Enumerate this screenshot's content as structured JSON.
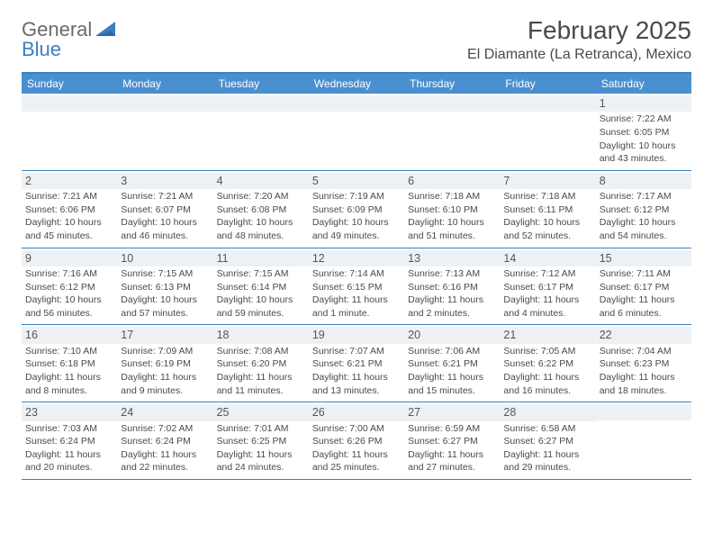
{
  "logo": {
    "line1": "General",
    "line2": "Blue"
  },
  "title": "February 2025",
  "location": "El Diamante (La Retranca), Mexico",
  "colors": {
    "headerBar": "#4a90d0",
    "accentLine": "#3a7fc0",
    "dayBand": "#eef1f3",
    "text": "#4a4a4a",
    "logoBlue": "#3a7fc0",
    "background": "#ffffff"
  },
  "typography": {
    "titleFontSize": 28,
    "locationFontSize": 16,
    "dowFontSize": 12,
    "dayNumFontSize": 12.5,
    "bodyFontSize": 10.5
  },
  "daysOfWeek": [
    "Sunday",
    "Monday",
    "Tuesday",
    "Wednesday",
    "Thursday",
    "Friday",
    "Saturday"
  ],
  "weeks": [
    [
      null,
      null,
      null,
      null,
      null,
      null,
      {
        "n": "1",
        "sunrise": "Sunrise: 7:22 AM",
        "sunset": "Sunset: 6:05 PM",
        "dl1": "Daylight: 10 hours",
        "dl2": "and 43 minutes."
      }
    ],
    [
      {
        "n": "2",
        "sunrise": "Sunrise: 7:21 AM",
        "sunset": "Sunset: 6:06 PM",
        "dl1": "Daylight: 10 hours",
        "dl2": "and 45 minutes."
      },
      {
        "n": "3",
        "sunrise": "Sunrise: 7:21 AM",
        "sunset": "Sunset: 6:07 PM",
        "dl1": "Daylight: 10 hours",
        "dl2": "and 46 minutes."
      },
      {
        "n": "4",
        "sunrise": "Sunrise: 7:20 AM",
        "sunset": "Sunset: 6:08 PM",
        "dl1": "Daylight: 10 hours",
        "dl2": "and 48 minutes."
      },
      {
        "n": "5",
        "sunrise": "Sunrise: 7:19 AM",
        "sunset": "Sunset: 6:09 PM",
        "dl1": "Daylight: 10 hours",
        "dl2": "and 49 minutes."
      },
      {
        "n": "6",
        "sunrise": "Sunrise: 7:18 AM",
        "sunset": "Sunset: 6:10 PM",
        "dl1": "Daylight: 10 hours",
        "dl2": "and 51 minutes."
      },
      {
        "n": "7",
        "sunrise": "Sunrise: 7:18 AM",
        "sunset": "Sunset: 6:11 PM",
        "dl1": "Daylight: 10 hours",
        "dl2": "and 52 minutes."
      },
      {
        "n": "8",
        "sunrise": "Sunrise: 7:17 AM",
        "sunset": "Sunset: 6:12 PM",
        "dl1": "Daylight: 10 hours",
        "dl2": "and 54 minutes."
      }
    ],
    [
      {
        "n": "9",
        "sunrise": "Sunrise: 7:16 AM",
        "sunset": "Sunset: 6:12 PM",
        "dl1": "Daylight: 10 hours",
        "dl2": "and 56 minutes."
      },
      {
        "n": "10",
        "sunrise": "Sunrise: 7:15 AM",
        "sunset": "Sunset: 6:13 PM",
        "dl1": "Daylight: 10 hours",
        "dl2": "and 57 minutes."
      },
      {
        "n": "11",
        "sunrise": "Sunrise: 7:15 AM",
        "sunset": "Sunset: 6:14 PM",
        "dl1": "Daylight: 10 hours",
        "dl2": "and 59 minutes."
      },
      {
        "n": "12",
        "sunrise": "Sunrise: 7:14 AM",
        "sunset": "Sunset: 6:15 PM",
        "dl1": "Daylight: 11 hours",
        "dl2": "and 1 minute."
      },
      {
        "n": "13",
        "sunrise": "Sunrise: 7:13 AM",
        "sunset": "Sunset: 6:16 PM",
        "dl1": "Daylight: 11 hours",
        "dl2": "and 2 minutes."
      },
      {
        "n": "14",
        "sunrise": "Sunrise: 7:12 AM",
        "sunset": "Sunset: 6:17 PM",
        "dl1": "Daylight: 11 hours",
        "dl2": "and 4 minutes."
      },
      {
        "n": "15",
        "sunrise": "Sunrise: 7:11 AM",
        "sunset": "Sunset: 6:17 PM",
        "dl1": "Daylight: 11 hours",
        "dl2": "and 6 minutes."
      }
    ],
    [
      {
        "n": "16",
        "sunrise": "Sunrise: 7:10 AM",
        "sunset": "Sunset: 6:18 PM",
        "dl1": "Daylight: 11 hours",
        "dl2": "and 8 minutes."
      },
      {
        "n": "17",
        "sunrise": "Sunrise: 7:09 AM",
        "sunset": "Sunset: 6:19 PM",
        "dl1": "Daylight: 11 hours",
        "dl2": "and 9 minutes."
      },
      {
        "n": "18",
        "sunrise": "Sunrise: 7:08 AM",
        "sunset": "Sunset: 6:20 PM",
        "dl1": "Daylight: 11 hours",
        "dl2": "and 11 minutes."
      },
      {
        "n": "19",
        "sunrise": "Sunrise: 7:07 AM",
        "sunset": "Sunset: 6:21 PM",
        "dl1": "Daylight: 11 hours",
        "dl2": "and 13 minutes."
      },
      {
        "n": "20",
        "sunrise": "Sunrise: 7:06 AM",
        "sunset": "Sunset: 6:21 PM",
        "dl1": "Daylight: 11 hours",
        "dl2": "and 15 minutes."
      },
      {
        "n": "21",
        "sunrise": "Sunrise: 7:05 AM",
        "sunset": "Sunset: 6:22 PM",
        "dl1": "Daylight: 11 hours",
        "dl2": "and 16 minutes."
      },
      {
        "n": "22",
        "sunrise": "Sunrise: 7:04 AM",
        "sunset": "Sunset: 6:23 PM",
        "dl1": "Daylight: 11 hours",
        "dl2": "and 18 minutes."
      }
    ],
    [
      {
        "n": "23",
        "sunrise": "Sunrise: 7:03 AM",
        "sunset": "Sunset: 6:24 PM",
        "dl1": "Daylight: 11 hours",
        "dl2": "and 20 minutes."
      },
      {
        "n": "24",
        "sunrise": "Sunrise: 7:02 AM",
        "sunset": "Sunset: 6:24 PM",
        "dl1": "Daylight: 11 hours",
        "dl2": "and 22 minutes."
      },
      {
        "n": "25",
        "sunrise": "Sunrise: 7:01 AM",
        "sunset": "Sunset: 6:25 PM",
        "dl1": "Daylight: 11 hours",
        "dl2": "and 24 minutes."
      },
      {
        "n": "26",
        "sunrise": "Sunrise: 7:00 AM",
        "sunset": "Sunset: 6:26 PM",
        "dl1": "Daylight: 11 hours",
        "dl2": "and 25 minutes."
      },
      {
        "n": "27",
        "sunrise": "Sunrise: 6:59 AM",
        "sunset": "Sunset: 6:27 PM",
        "dl1": "Daylight: 11 hours",
        "dl2": "and 27 minutes."
      },
      {
        "n": "28",
        "sunrise": "Sunrise: 6:58 AM",
        "sunset": "Sunset: 6:27 PM",
        "dl1": "Daylight: 11 hours",
        "dl2": "and 29 minutes."
      },
      null
    ]
  ]
}
